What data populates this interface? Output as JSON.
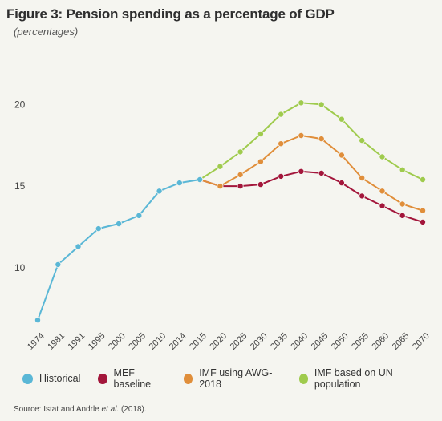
{
  "header": {
    "title": "Figure 3: Pension spending as a percentage of GDP",
    "subtitle": "(percentages)"
  },
  "source": {
    "prefix": "Source: Istat and Andrle ",
    "emph": "et al.",
    "suffix": " (2018)."
  },
  "colors": {
    "historical": "#5ab7d6",
    "mef": "#a3163b",
    "awg": "#e08e3a",
    "un": "#9fcb4d",
    "axis_text": "#444444"
  },
  "chart_data": {
    "type": "line",
    "title": "Figure 3: Pension spending as a percentage of GDP",
    "subtitle": "(percentages)",
    "categories": [
      "1974",
      "1981",
      "1991",
      "1995",
      "2000",
      "2005",
      "2010",
      "2014",
      "2015",
      "2020",
      "2025",
      "2030",
      "2035",
      "2040",
      "2045",
      "2050",
      "2055",
      "2060",
      "2065",
      "2070"
    ],
    "ylim": [
      7,
      21
    ],
    "yticks": [
      10,
      15,
      20
    ],
    "grid": false,
    "legend_placement": "bottom",
    "series": [
      {
        "name": "Historical",
        "key": "historical",
        "values": [
          6.8,
          10.2,
          11.3,
          12.4,
          12.7,
          13.2,
          14.7,
          15.2,
          15.4,
          null,
          null,
          null,
          null,
          null,
          null,
          null,
          null,
          null,
          null,
          null
        ]
      },
      {
        "name": "MEF baseline",
        "key": "mef",
        "values": [
          null,
          null,
          null,
          null,
          null,
          null,
          null,
          null,
          15.4,
          15.0,
          15.0,
          15.1,
          15.6,
          15.9,
          15.8,
          15.2,
          14.4,
          13.8,
          13.2,
          12.8
        ]
      },
      {
        "name": "IMF using AWG-2018",
        "key": "awg",
        "values": [
          null,
          null,
          null,
          null,
          null,
          null,
          null,
          null,
          15.4,
          15.0,
          15.7,
          16.5,
          17.6,
          18.1,
          17.9,
          16.9,
          15.5,
          14.7,
          13.9,
          13.5
        ]
      },
      {
        "name": "IMF based on UN population",
        "key": "un",
        "values": [
          null,
          null,
          null,
          null,
          null,
          null,
          null,
          null,
          15.4,
          16.2,
          17.1,
          18.2,
          19.4,
          20.1,
          20.0,
          19.1,
          17.8,
          16.8,
          16.0,
          15.4
        ]
      }
    ]
  }
}
